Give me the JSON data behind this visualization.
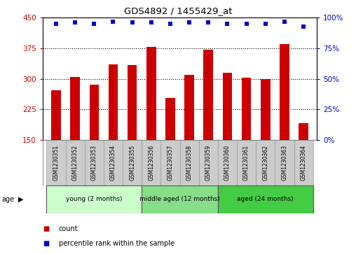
{
  "title": "GDS4892 / 1455429_at",
  "samples": [
    "GSM1230351",
    "GSM1230352",
    "GSM1230353",
    "GSM1230354",
    "GSM1230355",
    "GSM1230356",
    "GSM1230357",
    "GSM1230358",
    "GSM1230359",
    "GSM1230360",
    "GSM1230361",
    "GSM1230362",
    "GSM1230363",
    "GSM1230364"
  ],
  "counts": [
    271,
    305,
    285,
    335,
    333,
    378,
    253,
    310,
    372,
    315,
    303,
    300,
    385,
    190
  ],
  "percentiles": [
    95,
    96,
    95,
    97,
    96,
    96,
    95,
    96,
    96,
    95,
    95,
    95,
    97,
    93
  ],
  "ylim_left": [
    150,
    450
  ],
  "ylim_right": [
    0,
    100
  ],
  "yticks_left": [
    150,
    225,
    300,
    375,
    450
  ],
  "yticks_right": [
    0,
    25,
    50,
    75,
    100
  ],
  "bar_color": "#cc0000",
  "scatter_color": "#0000cc",
  "grid_color": "#000000",
  "bg_color": "#ffffff",
  "groups": [
    {
      "label": "young (2 months)",
      "start": 0,
      "end": 5,
      "color": "#ccffcc"
    },
    {
      "label": "middle aged (12 months)",
      "start": 5,
      "end": 9,
      "color": "#88dd88"
    },
    {
      "label": "aged (24 months)",
      "start": 9,
      "end": 14,
      "color": "#44cc44"
    }
  ],
  "legend_items": [
    {
      "label": "count",
      "color": "#cc0000"
    },
    {
      "label": "percentile rank within the sample",
      "color": "#0000cc"
    }
  ],
  "age_label": "age",
  "bar_width": 0.5,
  "label_area_color": "#cccccc",
  "right_axis_pct_labels": [
    "0%",
    "25%",
    "50%",
    "75%",
    "100%"
  ]
}
